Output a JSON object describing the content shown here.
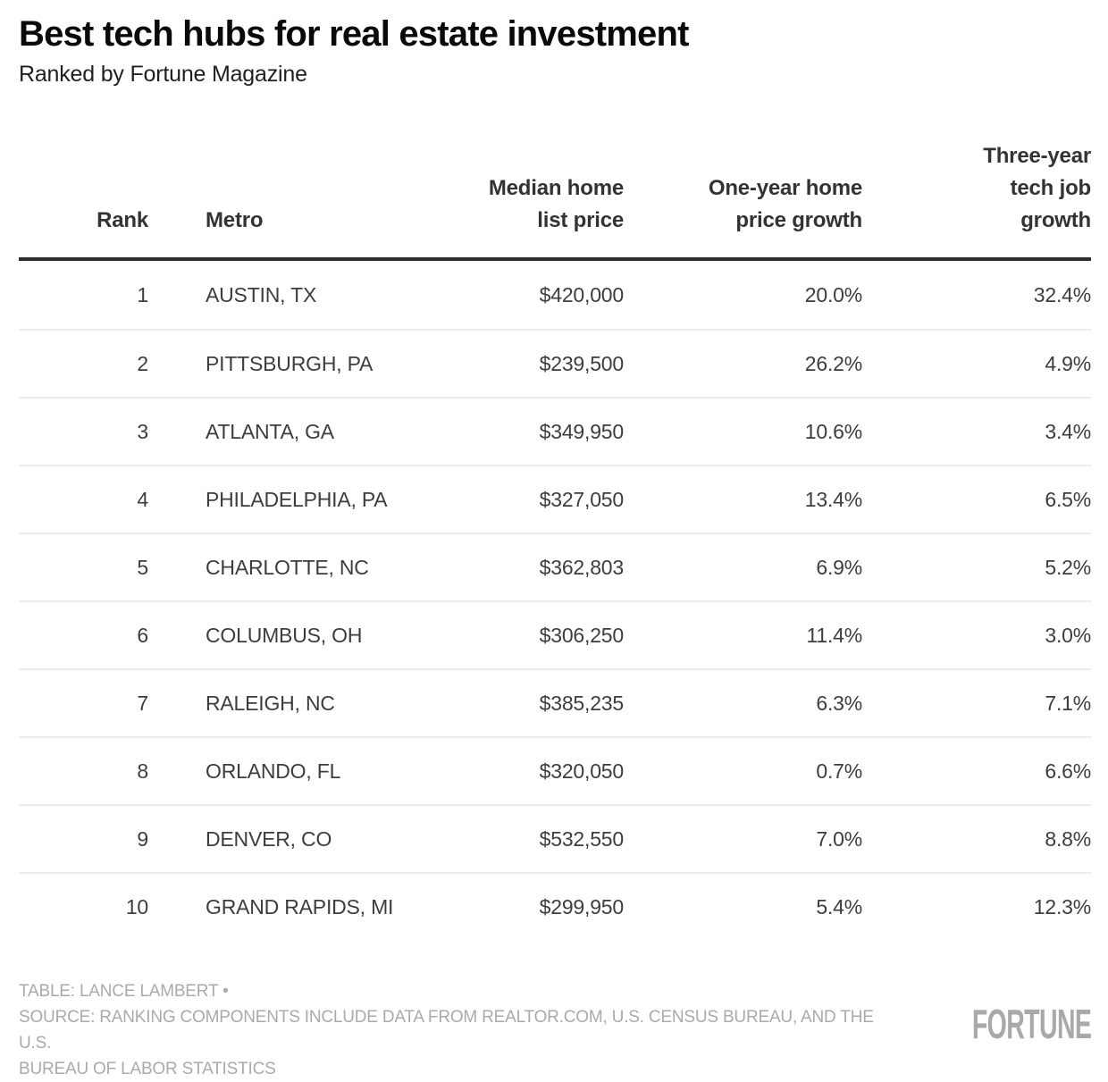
{
  "header": {
    "title": "Best tech hubs for real estate investment",
    "subtitle": "Ranked by Fortune Magazine"
  },
  "table": {
    "columns": [
      "Rank",
      "Metro",
      "Median home\nlist price",
      "One-year home\nprice growth",
      "Three-year\ntech job\ngrowth"
    ],
    "rows": [
      {
        "rank": "1",
        "metro": "AUSTIN, TX",
        "price": "$420,000",
        "one_year": "20.0%",
        "three_year": "32.4%"
      },
      {
        "rank": "2",
        "metro": "PITTSBURGH, PA",
        "price": "$239,500",
        "one_year": "26.2%",
        "three_year": "4.9%"
      },
      {
        "rank": "3",
        "metro": "ATLANTA, GA",
        "price": "$349,950",
        "one_year": "10.6%",
        "three_year": "3.4%"
      },
      {
        "rank": "4",
        "metro": "PHILADELPHIA, PA",
        "price": "$327,050",
        "one_year": "13.4%",
        "three_year": "6.5%"
      },
      {
        "rank": "5",
        "metro": "CHARLOTTE, NC",
        "price": "$362,803",
        "one_year": "6.9%",
        "three_year": "5.2%"
      },
      {
        "rank": "6",
        "metro": "COLUMBUS, OH",
        "price": "$306,250",
        "one_year": "11.4%",
        "three_year": "3.0%"
      },
      {
        "rank": "7",
        "metro": "RALEIGH, NC",
        "price": "$385,235",
        "one_year": "6.3%",
        "three_year": "7.1%"
      },
      {
        "rank": "8",
        "metro": "ORLANDO, FL",
        "price": "$320,050",
        "one_year": "0.7%",
        "three_year": "6.6%"
      },
      {
        "rank": "9",
        "metro": "DENVER, CO",
        "price": "$532,550",
        "one_year": "7.0%",
        "three_year": "8.8%"
      },
      {
        "rank": "10",
        "metro": "GRAND RAPIDS, MI",
        "price": "$299,950",
        "one_year": "5.4%",
        "three_year": "12.3%"
      }
    ]
  },
  "footer": {
    "notes": [
      "TABLE: LANCE LAMBERT •",
      "SOURCE: RANKING COMPONENTS INCLUDE DATA FROM REALTOR.COM, U.S. CENSUS BUREAU, AND THE U.S.",
      "BUREAU OF LABOR STATISTICS"
    ],
    "brand": "FORTUNE"
  },
  "colors": {
    "title": "#0a0a0a",
    "header_text": "#333333",
    "body_text": "#3d3d3d",
    "header_rule": "#2e2e2e",
    "row_separator": "#ececec",
    "footer_text": "#aaaaaa",
    "brand_gray": "#a9a9a9"
  },
  "chart_data": {
    "type": "table",
    "title": "Best tech hubs for real estate investment",
    "subtitle": "Ranked by Fortune Magazine",
    "columns": [
      "Rank",
      "Metro",
      "Median home list price",
      "One-year home price growth",
      "Three-year tech job growth"
    ],
    "rows": [
      [
        1,
        "AUSTIN, TX",
        420000,
        20.0,
        32.4
      ],
      [
        2,
        "PITTSBURGH, PA",
        239500,
        26.2,
        4.9
      ],
      [
        3,
        "ATLANTA, GA",
        349950,
        10.6,
        3.4
      ],
      [
        4,
        "PHILADELPHIA, PA",
        327050,
        13.4,
        6.5
      ],
      [
        5,
        "CHARLOTTE, NC",
        362803,
        6.9,
        5.2
      ],
      [
        6,
        "COLUMBUS, OH",
        306250,
        11.4,
        3.0
      ],
      [
        7,
        "RALEIGH, NC",
        385235,
        6.3,
        7.1
      ],
      [
        8,
        "ORLANDO, FL",
        320050,
        0.7,
        6.6
      ],
      [
        9,
        "DENVER, CO",
        532550,
        7.0,
        8.8
      ],
      [
        10,
        "GRAND RAPIDS, MI",
        299950,
        5.4,
        12.3
      ]
    ],
    "units": {
      "Median home list price": "$",
      "One-year home price growth": "%",
      "Three-year tech job growth": "%"
    },
    "source": "TABLE: LANCE LAMBERT • SOURCE: RANKING COMPONENTS INCLUDE DATA FROM REALTOR.COM, U.S. CENSUS BUREAU, AND THE U.S. BUREAU OF LABOR STATISTICS"
  }
}
